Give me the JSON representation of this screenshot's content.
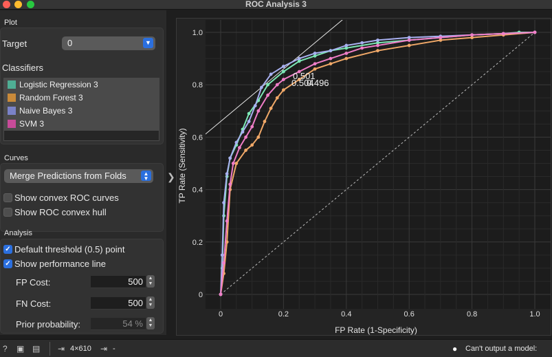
{
  "window": {
    "title": "ROC Analysis 3"
  },
  "plot_section": {
    "title": "Plot",
    "target_label": "Target",
    "target_value": "0",
    "classifiers_label": "Classifiers",
    "classifiers": [
      {
        "name": "Logistic Regression 3",
        "color": "#4fae94"
      },
      {
        "name": "Random Forest 3",
        "color": "#c98a3a"
      },
      {
        "name": "Naive Bayes 3",
        "color": "#7a82c8"
      },
      {
        "name": "SVM 3",
        "color": "#c74b99"
      }
    ]
  },
  "curves_section": {
    "title": "Curves",
    "mode": "Merge Predictions from Folds",
    "show_convex_curves": {
      "label": "Show convex ROC curves",
      "checked": false
    },
    "show_convex_hull": {
      "label": "Show ROC convex hull",
      "checked": false
    }
  },
  "analysis_section": {
    "title": "Analysis",
    "default_threshold": {
      "label": "Default threshold (0.5) point",
      "checked": true
    },
    "performance_line": {
      "label": "Show performance line",
      "checked": true
    },
    "fp_cost": {
      "label": "FP Cost:",
      "value": "500"
    },
    "fn_cost": {
      "label": "FN Cost:",
      "value": "500"
    },
    "prior": {
      "label": "Prior probability:",
      "value": "54 %"
    }
  },
  "status": {
    "data_shape": "4×610",
    "output": "-",
    "message": "Can't output a model:"
  },
  "chart_data": {
    "type": "line",
    "xlabel": "FP Rate (1-Specificity)",
    "ylabel": "TP Rate (Sensitivity)",
    "xlim": [
      0,
      1
    ],
    "ylim": [
      0,
      1
    ],
    "xticks": [
      "0",
      "0.2",
      "0.4",
      "0.6",
      "0.8",
      "1.0"
    ],
    "yticks": [
      "0",
      "0.2",
      "0.4",
      "0.6",
      "0.8",
      "1.0"
    ],
    "grid": true,
    "diagonal": true,
    "threshold_labels": [
      "0.501",
      "0.504",
      "0.496"
    ],
    "series": [
      {
        "name": "Logistic Regression 3",
        "color": "#7de8b6",
        "x": [
          0,
          0.005,
          0.01,
          0.02,
          0.03,
          0.05,
          0.07,
          0.09,
          0.12,
          0.15,
          0.2,
          0.25,
          0.3,
          0.35,
          0.4,
          0.5,
          0.6,
          0.7,
          0.8,
          0.9,
          0.95,
          1.0
        ],
        "y": [
          0,
          0.1,
          0.3,
          0.45,
          0.52,
          0.57,
          0.63,
          0.69,
          0.74,
          0.8,
          0.85,
          0.89,
          0.91,
          0.93,
          0.94,
          0.96,
          0.97,
          0.98,
          0.99,
          0.995,
          1.0,
          1.0
        ]
      },
      {
        "name": "Random Forest 3",
        "color": "#f0a868",
        "x": [
          0,
          0.01,
          0.02,
          0.03,
          0.05,
          0.08,
          0.1,
          0.12,
          0.14,
          0.16,
          0.18,
          0.2,
          0.25,
          0.3,
          0.35,
          0.4,
          0.5,
          0.6,
          0.7,
          0.8,
          0.9,
          1.0
        ],
        "y": [
          0,
          0.08,
          0.2,
          0.4,
          0.5,
          0.55,
          0.57,
          0.6,
          0.66,
          0.71,
          0.75,
          0.78,
          0.82,
          0.86,
          0.88,
          0.9,
          0.93,
          0.95,
          0.97,
          0.98,
          0.99,
          1.0
        ]
      },
      {
        "name": "Naive Bayes 3",
        "color": "#a8b0f0",
        "x": [
          0,
          0.005,
          0.01,
          0.02,
          0.03,
          0.05,
          0.07,
          0.09,
          0.11,
          0.13,
          0.16,
          0.2,
          0.25,
          0.3,
          0.35,
          0.4,
          0.45,
          0.5,
          0.6,
          0.7,
          0.8,
          0.9,
          1.0
        ],
        "y": [
          0,
          0.15,
          0.35,
          0.46,
          0.52,
          0.58,
          0.62,
          0.66,
          0.72,
          0.79,
          0.84,
          0.87,
          0.9,
          0.92,
          0.93,
          0.95,
          0.96,
          0.97,
          0.98,
          0.985,
          0.99,
          0.995,
          1.0
        ]
      },
      {
        "name": "SVM 3",
        "color": "#f07ec8",
        "x": [
          0,
          0.01,
          0.02,
          0.03,
          0.04,
          0.06,
          0.08,
          0.1,
          0.12,
          0.15,
          0.18,
          0.2,
          0.25,
          0.3,
          0.35,
          0.4,
          0.45,
          0.5,
          0.6,
          0.7,
          0.8,
          0.9,
          1.0
        ],
        "y": [
          0,
          0.12,
          0.28,
          0.42,
          0.5,
          0.56,
          0.6,
          0.64,
          0.7,
          0.76,
          0.8,
          0.82,
          0.85,
          0.88,
          0.9,
          0.92,
          0.94,
          0.95,
          0.97,
          0.98,
          0.99,
          0.995,
          1.0
        ]
      }
    ],
    "performance_line": {
      "slope": 1.0,
      "intercept": 0.66
    }
  }
}
